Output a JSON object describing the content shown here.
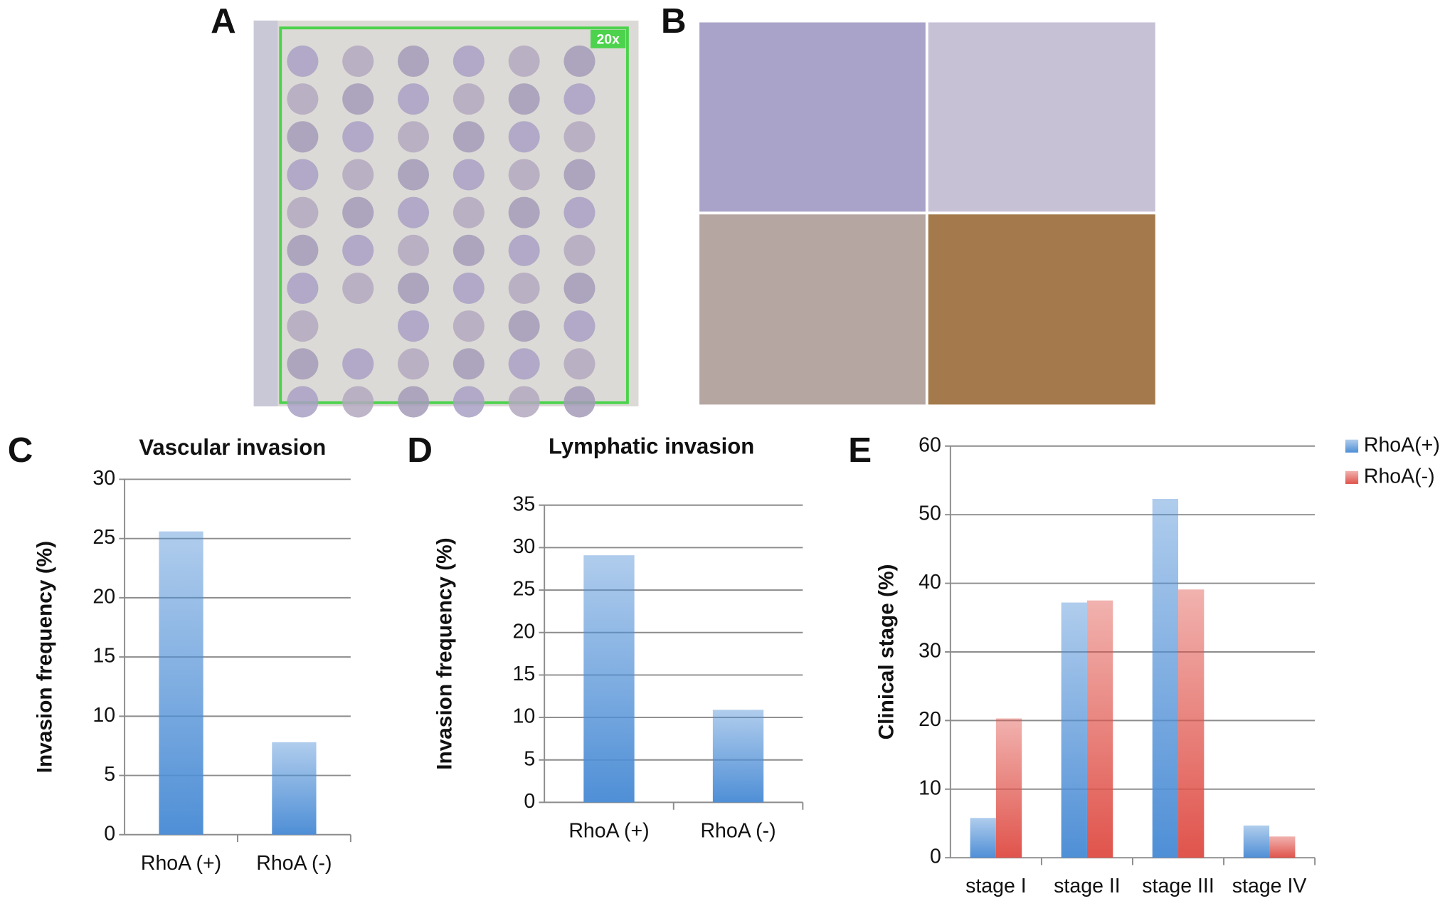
{
  "panel_labels": [
    "A",
    "B",
    "C",
    "D",
    "E"
  ],
  "magnification": "20x",
  "chart_data": [
    {
      "type": "bar",
      "title": "Vascular invasion",
      "ylabel": "Invasion frequency (%)",
      "categories": [
        "RhoA (+)",
        "RhoA (-)"
      ],
      "values": [
        25.6,
        7.8
      ],
      "color": "#4f8fd6",
      "ylim": [
        0,
        30
      ],
      "yticks": [
        0,
        5,
        10,
        15,
        20,
        25,
        30
      ],
      "grid": true
    },
    {
      "type": "bar",
      "title": "Lymphatic invasion",
      "ylabel": "Invasion frequency (%)",
      "categories": [
        "RhoA (+)",
        "RhoA (-)"
      ],
      "values": [
        29.1,
        10.9
      ],
      "color": "#4f8fd6",
      "ylim": [
        0,
        35
      ],
      "yticks": [
        0,
        5,
        10,
        15,
        20,
        25,
        30,
        35
      ],
      "grid": true
    },
    {
      "type": "bar",
      "ylabel": "Clinical stage (%)",
      "categories": [
        "stage I",
        "stage II",
        "stage III",
        "stage IV"
      ],
      "series": [
        {
          "name": "RhoA(+)",
          "color": "#4f8fd6",
          "values": [
            5.8,
            37.2,
            52.3,
            4.7
          ]
        },
        {
          "name": "RhoA(-)",
          "color": "#e0544c",
          "values": [
            20.3,
            37.5,
            39.1,
            3.1
          ]
        }
      ],
      "ylim": [
        0,
        60
      ],
      "yticks": [
        0,
        10,
        20,
        30,
        40,
        50,
        60
      ],
      "grid": true,
      "legend": "outside-right"
    }
  ]
}
